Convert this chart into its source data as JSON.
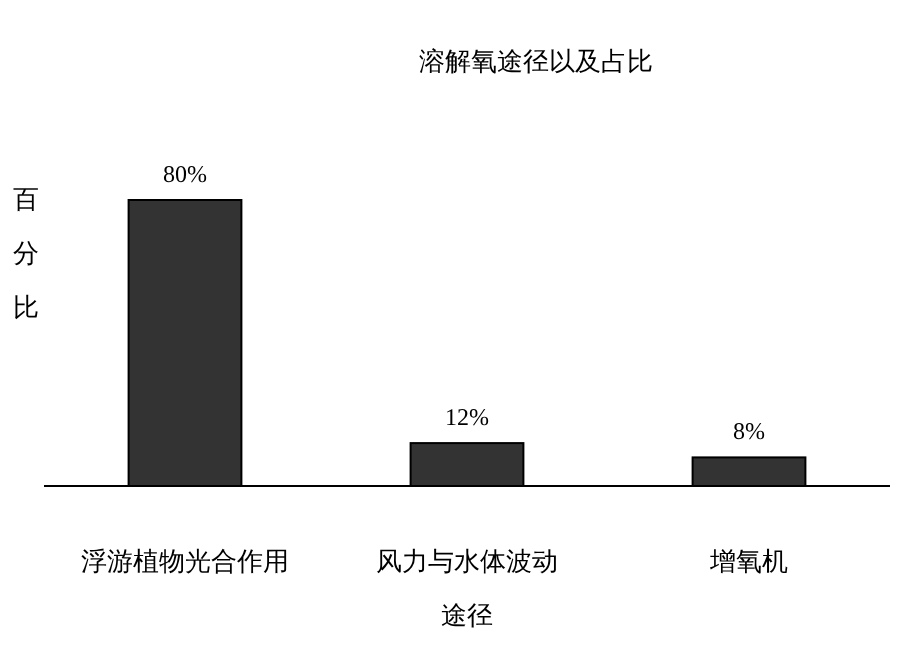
{
  "chart_data": {
    "type": "bar",
    "title": "溶解氧途径以及占比",
    "xlabel": "途径",
    "ylabel": "百分比",
    "categories": [
      "浮游植物光合作用",
      "风力与水体波动",
      "增氧机"
    ],
    "values": [
      80,
      12,
      8
    ],
    "value_labels": [
      "80%",
      "12%",
      "8%"
    ],
    "color": "#333333"
  }
}
